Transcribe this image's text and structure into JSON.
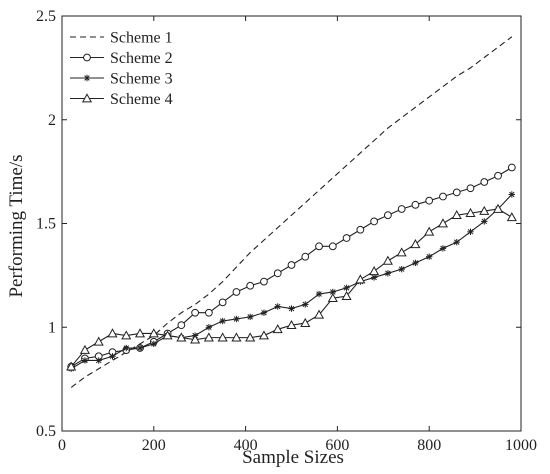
{
  "chart_data": {
    "type": "line",
    "title": "",
    "xlabel": "Sample Sizes",
    "ylabel": "Performing Time/s",
    "xlim": [
      0,
      1000
    ],
    "ylim": [
      0.5,
      2.5
    ],
    "xticks": [
      0,
      200,
      400,
      600,
      800,
      1000
    ],
    "yticks": [
      0.5,
      1,
      1.5,
      2,
      2.5
    ],
    "xtick_labels": [
      "0",
      "200",
      "400",
      "600",
      "800",
      "1000"
    ],
    "ytick_labels": [
      "0.5",
      "1",
      "1.5",
      "2",
      "2.5"
    ],
    "grid": false,
    "legend_position": "top-left",
    "x": [
      20,
      50,
      80,
      110,
      140,
      170,
      200,
      230,
      260,
      290,
      320,
      350,
      380,
      410,
      440,
      470,
      500,
      530,
      560,
      590,
      620,
      650,
      680,
      710,
      740,
      770,
      800,
      830,
      860,
      890,
      920,
      950,
      980
    ],
    "series": [
      {
        "name": "Scheme 1",
        "style": "dashed",
        "marker": "none",
        "values": [
          0.71,
          0.76,
          0.8,
          0.84,
          0.88,
          0.92,
          0.96,
          1.02,
          1.07,
          1.11,
          1.16,
          1.22,
          1.29,
          1.36,
          1.42,
          1.48,
          1.54,
          1.6,
          1.66,
          1.72,
          1.78,
          1.84,
          1.9,
          1.96,
          2.01,
          2.06,
          2.11,
          2.16,
          2.21,
          2.25,
          2.3,
          2.35,
          2.4
        ]
      },
      {
        "name": "Scheme 2",
        "style": "solid",
        "marker": "circle",
        "values": [
          0.81,
          0.85,
          0.86,
          0.88,
          0.89,
          0.9,
          0.93,
          0.97,
          1.01,
          1.07,
          1.07,
          1.12,
          1.17,
          1.2,
          1.22,
          1.26,
          1.3,
          1.34,
          1.39,
          1.39,
          1.43,
          1.47,
          1.51,
          1.54,
          1.57,
          1.59,
          1.61,
          1.63,
          1.65,
          1.67,
          1.7,
          1.73,
          1.77
        ]
      },
      {
        "name": "Scheme 3",
        "style": "solid",
        "marker": "star",
        "values": [
          0.8,
          0.84,
          0.84,
          0.86,
          0.9,
          0.9,
          0.92,
          0.96,
          0.95,
          0.96,
          1.0,
          1.03,
          1.04,
          1.05,
          1.07,
          1.1,
          1.09,
          1.11,
          1.16,
          1.17,
          1.19,
          1.22,
          1.24,
          1.26,
          1.28,
          1.31,
          1.34,
          1.38,
          1.41,
          1.46,
          1.51,
          1.57,
          1.64
        ]
      },
      {
        "name": "Scheme 4",
        "style": "solid",
        "marker": "triangle",
        "values": [
          0.81,
          0.89,
          0.93,
          0.97,
          0.96,
          0.97,
          0.97,
          0.96,
          0.95,
          0.94,
          0.95,
          0.95,
          0.95,
          0.95,
          0.96,
          0.99,
          1.01,
          1.02,
          1.06,
          1.14,
          1.15,
          1.23,
          1.27,
          1.32,
          1.36,
          1.4,
          1.46,
          1.5,
          1.54,
          1.55,
          1.56,
          1.57,
          1.53
        ]
      }
    ]
  }
}
